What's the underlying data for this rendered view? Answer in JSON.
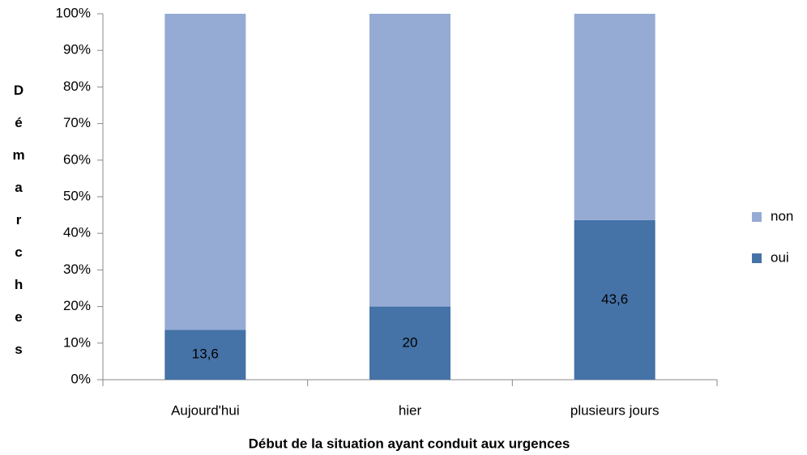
{
  "chart_data": {
    "type": "stacked_bar_100",
    "categories": [
      "Aujourd'hui",
      "hier",
      "plusieurs jours"
    ],
    "series": [
      {
        "name": "oui",
        "color": "#4572a7",
        "values": [
          13.6,
          20,
          43.6
        ],
        "value_labels": [
          "13,6",
          "20",
          "43,6"
        ]
      },
      {
        "name": "non",
        "color": "#95abd4",
        "values": [
          86.4,
          80,
          56.4
        ]
      }
    ],
    "xlabel": "Début de la situation ayant conduit aux urgences",
    "ylabel": "Démarches",
    "ylim": [
      0,
      100
    ],
    "yticks": [
      {
        "value": 0,
        "label": "0%"
      },
      {
        "value": 10,
        "label": "10%"
      },
      {
        "value": 20,
        "label": "20%"
      },
      {
        "value": 30,
        "label": "30%"
      },
      {
        "value": 40,
        "label": "40%"
      },
      {
        "value": 50,
        "label": "50%"
      },
      {
        "value": 60,
        "label": "60%"
      },
      {
        "value": 70,
        "label": "70%"
      },
      {
        "value": 80,
        "label": "80%"
      },
      {
        "value": 90,
        "label": "90%"
      },
      {
        "value": 100,
        "label": "100%"
      }
    ],
    "legend": "right"
  }
}
